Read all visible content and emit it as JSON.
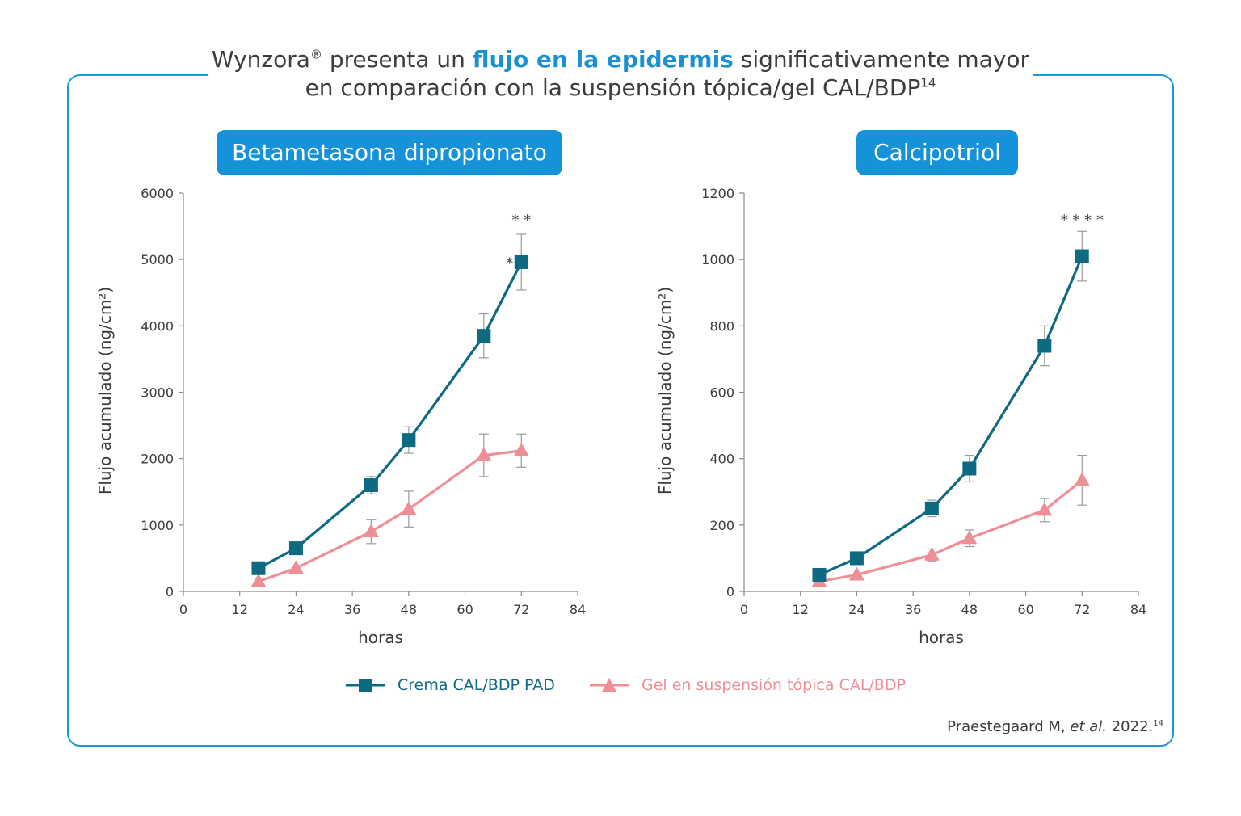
{
  "title": {
    "part1": "Wynzora",
    "reg": "®",
    "part2": " presenta un ",
    "highlight": "flujo en la epidermis",
    "part3": " significativamente mayor",
    "line2": "en comparación con la suspensión tópica/gel CAL/BDP",
    "line2_sup": "14"
  },
  "citation": {
    "author": "Praestegaard M, ",
    "etal": "et al.",
    "year": " 2022.",
    "sup": "14"
  },
  "legend": [
    {
      "label": "Crema CAL/BDP PAD",
      "color": "#0e6a80",
      "marker": "square-icon"
    },
    {
      "label": "Gel en suspensión tópica CAL/BDP",
      "color": "#ee8f96",
      "marker": "triangle-icon"
    }
  ],
  "chart_data": [
    {
      "type": "line",
      "title": "Betametasona dipropionato",
      "xlabel": "horas",
      "ylabel": "Flujo acumulado (ng/cm²)",
      "xlim": [
        0,
        84
      ],
      "ylim": [
        0,
        6000
      ],
      "xticks": [
        0,
        12,
        24,
        36,
        48,
        60,
        72,
        84
      ],
      "yticks": [
        0,
        1000,
        2000,
        3000,
        4000,
        5000,
        6000
      ],
      "x": [
        16,
        24,
        40,
        48,
        64,
        72
      ],
      "series": [
        {
          "name": "Crema CAL/BDP PAD",
          "color": "#0e6a80",
          "marker": "square",
          "values": [
            350,
            650,
            1600,
            2280,
            3850,
            4960
          ],
          "errors": [
            0,
            0,
            130,
            200,
            330,
            420
          ]
        },
        {
          "name": "Gel en suspensión tópica CAL/BDP",
          "color": "#ee8f96",
          "marker": "triangle",
          "values": [
            150,
            350,
            900,
            1240,
            2050,
            2120
          ],
          "errors": [
            0,
            0,
            180,
            270,
            320,
            250
          ]
        }
      ],
      "annotations": [
        {
          "text": "* *",
          "x": 72,
          "y": 5600
        },
        {
          "text": "*",
          "x": 69.5,
          "y": 4950
        }
      ]
    },
    {
      "type": "line",
      "title": "Calcipotriol",
      "xlabel": "horas",
      "ylabel": "Flujo acumulado (ng/cm²)",
      "xlim": [
        0,
        84
      ],
      "ylim": [
        0,
        1200
      ],
      "xticks": [
        0,
        12,
        24,
        36,
        48,
        60,
        72,
        84
      ],
      "yticks": [
        0,
        200,
        400,
        600,
        800,
        1000,
        1200
      ],
      "x": [
        16,
        24,
        40,
        48,
        64,
        72
      ],
      "series": [
        {
          "name": "Crema CAL/BDP PAD",
          "color": "#0e6a80",
          "marker": "square",
          "values": [
            50,
            100,
            250,
            370,
            740,
            1010
          ],
          "errors": [
            0,
            0,
            25,
            40,
            60,
            75
          ]
        },
        {
          "name": "Gel en suspensión tópica CAL/BDP",
          "color": "#ee8f96",
          "marker": "triangle",
          "values": [
            30,
            50,
            110,
            160,
            245,
            335
          ],
          "errors": [
            0,
            0,
            18,
            25,
            35,
            75
          ]
        }
      ],
      "annotations": [
        {
          "text": "* * * *",
          "x": 72,
          "y": 1120
        }
      ]
    }
  ]
}
